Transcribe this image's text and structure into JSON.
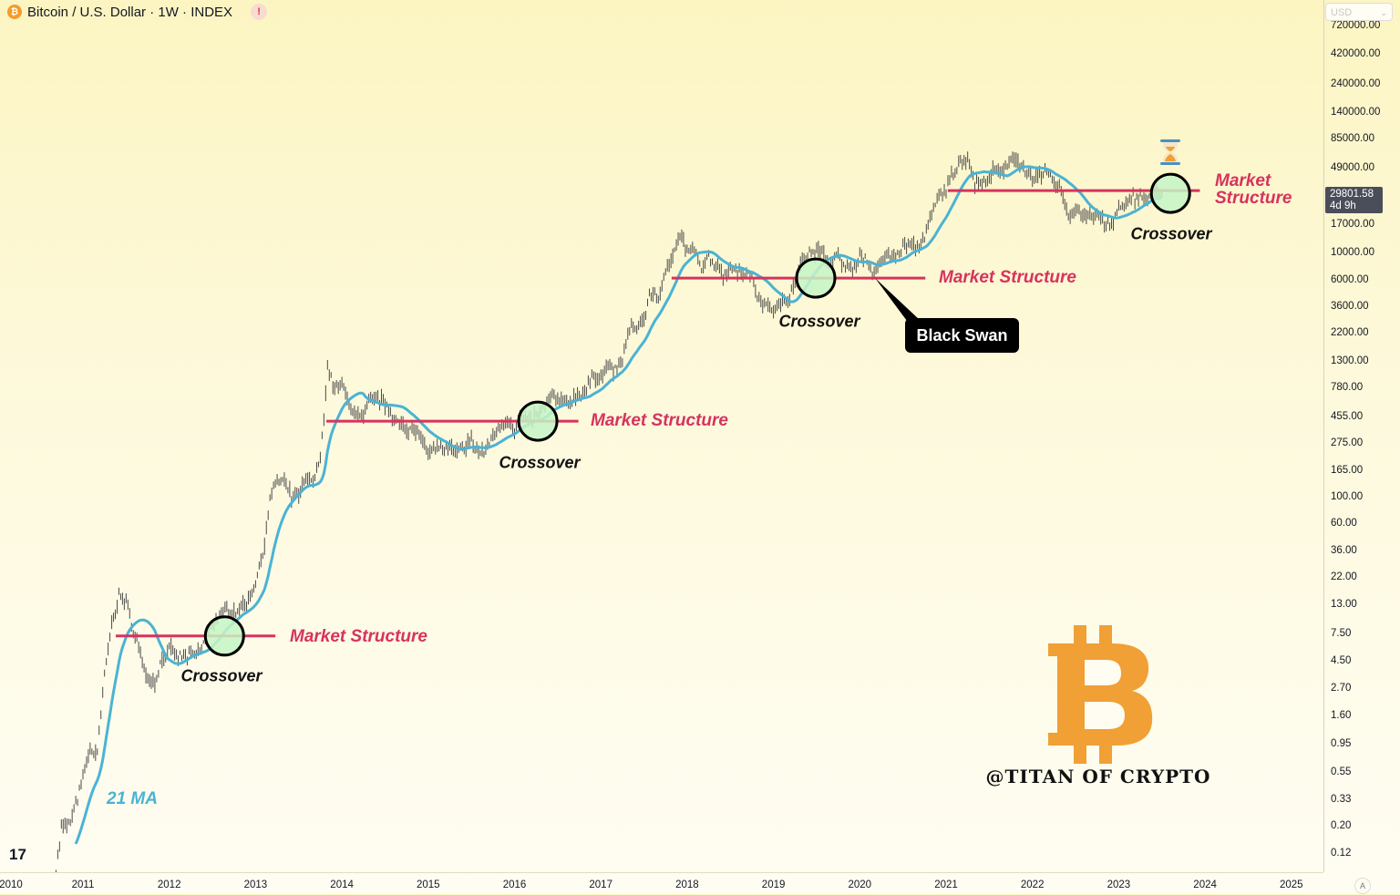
{
  "header": {
    "title": "Bitcoin / U.S. Dollar · 1W · INDEX",
    "symbol_icon": "bitcoin-icon",
    "warning_icon": "exclamation-icon",
    "warning_text": "!"
  },
  "y_axis": {
    "currency_select": "USD",
    "ticks": [
      "720000.00",
      "420000.00",
      "240000.00",
      "140000.00",
      "85000.00",
      "49000.00",
      "17000.00",
      "10000.00",
      "6000.00",
      "3600.00",
      "2200.00",
      "1300.00",
      "780.00",
      "455.00",
      "275.00",
      "165.00",
      "100.00",
      "60.00",
      "36.00",
      "22.00",
      "13.00",
      "7.50",
      "4.50",
      "2.70",
      "1.60",
      "0.95",
      "0.55",
      "0.33",
      "0.20",
      "0.12"
    ],
    "last_price": "29801.58",
    "countdown": "4d 9h",
    "auto_button": "A"
  },
  "x_axis": {
    "ticks": [
      "2010",
      "2011",
      "2012",
      "2013",
      "2014",
      "2015",
      "2016",
      "2017",
      "2018",
      "2019",
      "2020",
      "2021",
      "2022",
      "2023",
      "2024",
      "2025"
    ]
  },
  "annotations": {
    "market_structure": [
      "Market Structure",
      "Market Structure",
      "Market Structure",
      "Market\nStructure"
    ],
    "crossover": [
      "Crossover",
      "Crossover",
      "Crossover",
      "Crossover"
    ],
    "black_swan": "Black Swan",
    "ma_label": "21 MA"
  },
  "watermark": {
    "brand": "@TITAN OF CRYPTO",
    "logo": "bitcoin-b-logo"
  },
  "colors": {
    "market_structure": "#d6335e",
    "ma": "#4ab3d4",
    "crossover_fill": "#c6f5c6",
    "candle": "#4a4a4a",
    "btc_orange": "#f39c2b"
  },
  "chart_data": {
    "type": "line",
    "title": "Bitcoin / U.S. Dollar · 1W · INDEX",
    "y_scale": "log",
    "ylim": [
      0.12,
      720000
    ],
    "xlim": [
      2010,
      2025.3
    ],
    "grid": false,
    "price_monthly_close": {
      "start": "2010-07",
      "values": [
        0.07,
        0.06,
        0.06,
        0.19,
        0.21,
        0.3,
        0.52,
        0.86,
        0.78,
        3.5,
        8.7,
        16.1,
        13.4,
        8.2,
        5.1,
        3.2,
        3.0,
        4.7,
        5.5,
        4.9,
        4.9,
        5.0,
        5.2,
        6.7,
        9.4,
        10.1,
        12.4,
        11.2,
        12.6,
        13.5,
        20.4,
        33.4,
        93,
        139,
        129,
        97,
        106,
        135,
        133,
        203,
        1130,
        757,
        832,
        573,
        458,
        448,
        627,
        641,
        586,
        478,
        387,
        338,
        378,
        320,
        217,
        254,
        244,
        236,
        230,
        263,
        284,
        230,
        236,
        314,
        377,
        430,
        368,
        437,
        416,
        448,
        531,
        673,
        624,
        574,
        608,
        700,
        742,
        964,
        970,
        1190,
        1080,
        1350,
        2300,
        2480,
        2870,
        4760,
        4340,
        6470,
        10200,
        13860,
        10220,
        10330,
        6930,
        9240,
        7490,
        6390,
        7730,
        7030,
        6630,
        6370,
        4040,
        3740,
        3460,
        3850,
        4100,
        5350,
        8570,
        10820,
        10080,
        9630,
        8300,
        9200,
        7570,
        7200,
        9350,
        8600,
        6440,
        8630,
        9460,
        9140,
        11350,
        11650,
        10780,
        13800,
        19700,
        29000,
        33100,
        45200,
        58900,
        57700,
        37300,
        35000,
        41500,
        47100,
        43800,
        61300,
        57000,
        46300,
        38500,
        43200,
        45500,
        37700,
        31800,
        19900,
        23300,
        20050,
        19400,
        20500,
        17200,
        16500,
        23100,
        23150,
        28500,
        29250,
        27200,
        30500,
        29800
      ]
    },
    "series": [
      {
        "name": "21 MA",
        "type": "moving_average",
        "period_weeks": 21
      }
    ],
    "market_structure_levels": [
      {
        "price": 7.2,
        "from": 2011.38,
        "to": 2013.23
      },
      {
        "price": 414,
        "from": 2013.82,
        "to": 2016.74
      },
      {
        "price": 6150,
        "from": 2017.82,
        "to": 2020.76
      },
      {
        "price": 32000,
        "from": 2021.02,
        "to": 2023.94
      }
    ],
    "crossovers": [
      {
        "date": 2012.64,
        "price": 7.2
      },
      {
        "date": 2016.27,
        "price": 414
      },
      {
        "date": 2019.49,
        "price": 6150
      },
      {
        "date": 2023.6,
        "price": 30400
      }
    ],
    "black_swan": {
      "date": 2020.18,
      "price": 6150
    }
  }
}
